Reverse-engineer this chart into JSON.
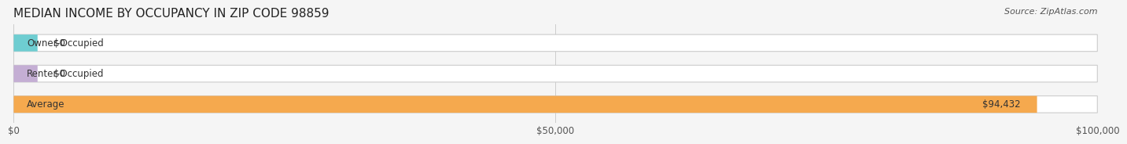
{
  "title": "MEDIAN INCOME BY OCCUPANCY IN ZIP CODE 98859",
  "source": "Source: ZipAtlas.com",
  "categories": [
    "Owner-Occupied",
    "Renter-Occupied",
    "Average"
  ],
  "values": [
    0,
    0,
    94432
  ],
  "bar_colors": [
    "#6ecdd1",
    "#c4aed4",
    "#f5a94e"
  ],
  "bar_labels": [
    "$0",
    "$0",
    "$94,432"
  ],
  "xlim": [
    0,
    100000
  ],
  "xticks": [
    0,
    50000,
    100000
  ],
  "xtick_labels": [
    "$0",
    "$50,000",
    "$100,000"
  ],
  "background_color": "#f5f5f5",
  "bar_bg_color": "#ececec",
  "title_fontsize": 11,
  "source_fontsize": 8,
  "label_fontsize": 8.5,
  "tick_fontsize": 8.5
}
